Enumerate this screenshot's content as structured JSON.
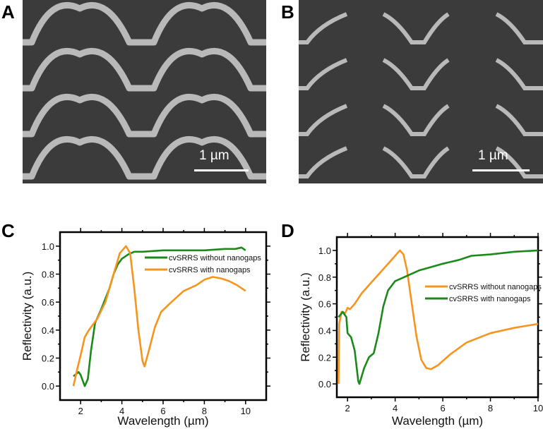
{
  "panels": {
    "a": "A",
    "b": "B",
    "c": "C",
    "d": "D"
  },
  "scale_bar": {
    "a": "1 µm",
    "b": "1 µm"
  },
  "colors": {
    "green": "#1a8a1a",
    "orange": "#f7941d",
    "sem_bg": "#3b3b3b",
    "sem_feature": "#b9b9b9"
  },
  "chart_data": [
    {
      "panel": "C",
      "type": "line",
      "xlabel": "Wavelength (µm)",
      "ylabel": "Reflectivity (a.u.)",
      "xlim": [
        1,
        11
      ],
      "ylim": [
        -0.1,
        1.1
      ],
      "xticks": [
        "2",
        "4",
        "6",
        "8",
        "10"
      ],
      "yticks": [
        "0.0",
        "0.2",
        "0.4",
        "0.6",
        "0.8",
        "1.0"
      ],
      "legend": "top-right",
      "series": [
        {
          "name": "cvSRRS without nanogaps",
          "color": "#1a8a1a",
          "x": [
            1.65,
            1.9,
            2.0,
            2.2,
            2.35,
            2.5,
            2.7,
            3.0,
            3.4,
            3.6,
            3.8,
            4.0,
            4.3,
            4.6,
            5,
            6,
            7,
            8,
            9,
            9.5,
            9.8,
            10
          ],
          "y": [
            0.07,
            0.1,
            0.08,
            0.0,
            0.05,
            0.25,
            0.45,
            0.55,
            0.7,
            0.8,
            0.87,
            0.91,
            0.94,
            0.96,
            0.96,
            0.97,
            0.97,
            0.97,
            0.98,
            0.98,
            0.99,
            0.97
          ]
        },
        {
          "name": "cvSRRS with nanogaps",
          "color": "#f7941d",
          "x": [
            1.65,
            1.8,
            2.0,
            2.2,
            2.4,
            2.8,
            3.2,
            3.6,
            3.9,
            4.2,
            4.4,
            4.6,
            4.8,
            5.0,
            5.1,
            5.3,
            5.6,
            5.9,
            6.4,
            7.0,
            7.6,
            8.0,
            8.4,
            8.8,
            9.2,
            9.6,
            10.0
          ],
          "y": [
            0.0,
            0.1,
            0.22,
            0.35,
            0.4,
            0.48,
            0.6,
            0.8,
            0.95,
            1.0,
            0.95,
            0.7,
            0.4,
            0.18,
            0.14,
            0.25,
            0.42,
            0.53,
            0.6,
            0.68,
            0.72,
            0.76,
            0.78,
            0.77,
            0.75,
            0.72,
            0.68
          ]
        }
      ]
    },
    {
      "panel": "D",
      "type": "line",
      "xlabel": "Wavelength (µm)",
      "ylabel": "Reflectivity (a.u.)",
      "xlim": [
        1.55,
        10
      ],
      "ylim": [
        -0.1,
        1.1
      ],
      "xticks": [
        "2",
        "4",
        "6",
        "8",
        "10"
      ],
      "yticks": [
        "0.0",
        "0.2",
        "0.4",
        "0.6",
        "0.8",
        "1.0"
      ],
      "legend": "right",
      "series": [
        {
          "name": "cvSRRS without nanogaps",
          "color": "#f7941d",
          "x": [
            1.62,
            1.65,
            1.75,
            1.9,
            2.0,
            2.1,
            2.3,
            2.6,
            3.0,
            3.4,
            3.8,
            4.1,
            4.2,
            4.35,
            4.5,
            4.7,
            4.9,
            5.1,
            5.3,
            5.5,
            5.8,
            6.3,
            7,
            8,
            9,
            10
          ],
          "y": [
            0.0,
            0.45,
            0.54,
            0.53,
            0.57,
            0.56,
            0.6,
            0.68,
            0.76,
            0.84,
            0.92,
            0.98,
            1.0,
            0.97,
            0.85,
            0.6,
            0.35,
            0.18,
            0.12,
            0.11,
            0.14,
            0.22,
            0.31,
            0.38,
            0.42,
            0.45
          ]
        },
        {
          "name": "cvSRRS with nanogaps",
          "color": "#1a8a1a",
          "x": [
            1.62,
            1.8,
            1.95,
            2.0,
            2.15,
            2.3,
            2.45,
            2.5,
            2.7,
            2.9,
            3.1,
            3.3,
            3.5,
            3.7,
            4.0,
            4.5,
            5,
            6,
            6.7,
            7.2,
            8,
            9,
            10
          ],
          "y": [
            0.5,
            0.54,
            0.5,
            0.38,
            0.35,
            0.25,
            0.02,
            0.0,
            0.12,
            0.2,
            0.23,
            0.38,
            0.58,
            0.7,
            0.77,
            0.81,
            0.85,
            0.9,
            0.93,
            0.96,
            0.97,
            0.99,
            1.0
          ]
        }
      ]
    }
  ]
}
